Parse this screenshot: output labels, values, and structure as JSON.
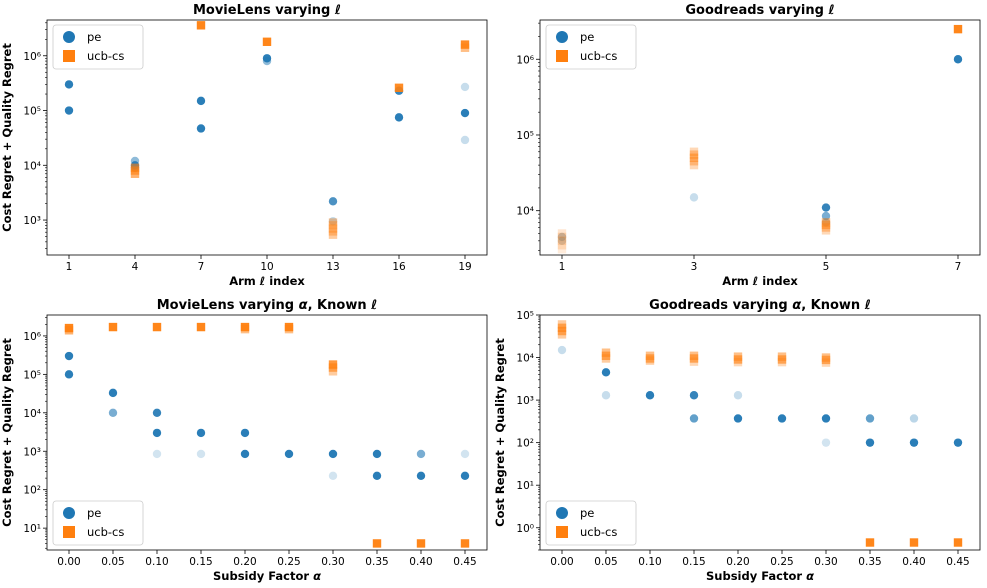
{
  "colors": {
    "pe": "#1f77b4",
    "ucb_cs": "#ff7f0e"
  },
  "panels": [
    {
      "title_text": "MovieLens varying ",
      "title_sym": "ℓ",
      "xlabel_text": "Arm ",
      "xlabel_sym": "ℓ",
      "xlabel_tail": " index",
      "ylabel": "Cost Regret + Quality Regret",
      "legend_pos": "upper-left",
      "chart_data": {
        "type": "scatter",
        "xscale": "categorical",
        "yscale": "log",
        "xticks": [
          "1",
          "4",
          "7",
          "10",
          "13",
          "16",
          "19"
        ],
        "ylim": [
          230,
          4500000
        ],
        "ytick_exponents": [
          3,
          4,
          5,
          6
        ],
        "series": [
          {
            "name": "pe",
            "marker": "circle",
            "points": [
              {
                "x": "1",
                "y": 300000,
                "a": 0.95
              },
              {
                "x": "1",
                "y": 100000,
                "a": 0.95
              },
              {
                "x": "4",
                "y": 12000,
                "a": 0.5
              },
              {
                "x": "4",
                "y": 10000,
                "a": 0.9
              },
              {
                "x": "4",
                "y": 9000,
                "a": 0.7
              },
              {
                "x": "7",
                "y": 150000,
                "a": 0.95
              },
              {
                "x": "7",
                "y": 47000,
                "a": 0.95
              },
              {
                "x": "10",
                "y": 900000,
                "a": 0.95
              },
              {
                "x": "10",
                "y": 800000,
                "a": 0.5
              },
              {
                "x": "13",
                "y": 2200,
                "a": 0.8
              },
              {
                "x": "13",
                "y": 950,
                "a": 0.3
              },
              {
                "x": "16",
                "y": 230000,
                "a": 0.9
              },
              {
                "x": "16",
                "y": 75000,
                "a": 0.95
              },
              {
                "x": "19",
                "y": 270000,
                "a": 0.25
              },
              {
                "x": "19",
                "y": 90000,
                "a": 0.95
              },
              {
                "x": "19",
                "y": 29000,
                "a": 0.25
              }
            ]
          },
          {
            "name": "ucb-cs",
            "marker": "square",
            "points": [
              {
                "x": "4",
                "y": 9000,
                "a": 0.6
              },
              {
                "x": "4",
                "y": 8000,
                "a": 0.6
              },
              {
                "x": "4",
                "y": 7000,
                "a": 0.6
              },
              {
                "x": "7",
                "y": 3600000,
                "a": 0.95
              },
              {
                "x": "10",
                "y": 1800000,
                "a": 0.95
              },
              {
                "x": "13",
                "y": 900,
                "a": 0.4
              },
              {
                "x": "13",
                "y": 800,
                "a": 0.4
              },
              {
                "x": "13",
                "y": 700,
                "a": 0.4
              },
              {
                "x": "13",
                "y": 620,
                "a": 0.4
              },
              {
                "x": "13",
                "y": 540,
                "a": 0.4
              },
              {
                "x": "16",
                "y": 260000,
                "a": 0.9
              },
              {
                "x": "19",
                "y": 1600000,
                "a": 0.9
              },
              {
                "x": "19",
                "y": 1400000,
                "a": 0.5
              }
            ]
          }
        ]
      }
    },
    {
      "title_text": "Goodreads varying ",
      "title_sym": "ℓ",
      "xlabel_text": "Arm ",
      "xlabel_sym": "ℓ",
      "xlabel_tail": " index",
      "ylabel": "",
      "legend_pos": "upper-left",
      "chart_data": {
        "type": "scatter",
        "xscale": "categorical",
        "yscale": "log",
        "xticks": [
          "1",
          "3",
          "5",
          "7"
        ],
        "ylim": [
          2600,
          3300000
        ],
        "ytick_exponents": [
          4,
          5,
          6
        ],
        "series": [
          {
            "name": "pe",
            "marker": "circle",
            "points": [
              {
                "x": "1",
                "y": 4500,
                "a": 0.4
              },
              {
                "x": "1",
                "y": 4000,
                "a": 0.3
              },
              {
                "x": "3",
                "y": 15000,
                "a": 0.25
              },
              {
                "x": "5",
                "y": 11000,
                "a": 0.9
              },
              {
                "x": "5",
                "y": 8500,
                "a": 0.6
              },
              {
                "x": "5",
                "y": 7000,
                "a": 0.4
              },
              {
                "x": "7",
                "y": 1000000,
                "a": 0.95
              }
            ]
          },
          {
            "name": "ucb-cs",
            "marker": "square",
            "points": [
              {
                "x": "1",
                "y": 5000,
                "a": 0.2
              },
              {
                "x": "1",
                "y": 4500,
                "a": 0.25
              },
              {
                "x": "1",
                "y": 4000,
                "a": 0.3
              },
              {
                "x": "1",
                "y": 3500,
                "a": 0.2
              },
              {
                "x": "1",
                "y": 3100,
                "a": 0.15
              },
              {
                "x": "3",
                "y": 60000,
                "a": 0.3
              },
              {
                "x": "3",
                "y": 55000,
                "a": 0.4
              },
              {
                "x": "3",
                "y": 50000,
                "a": 0.5
              },
              {
                "x": "3",
                "y": 45000,
                "a": 0.4
              },
              {
                "x": "3",
                "y": 40000,
                "a": 0.3
              },
              {
                "x": "5",
                "y": 7000,
                "a": 0.5
              },
              {
                "x": "5",
                "y": 6500,
                "a": 0.5
              },
              {
                "x": "5",
                "y": 6000,
                "a": 0.4
              },
              {
                "x": "5",
                "y": 5500,
                "a": 0.3
              },
              {
                "x": "7",
                "y": 2500000,
                "a": 0.95
              }
            ]
          }
        ]
      }
    },
    {
      "title_text": "MovieLens varying ",
      "title_sym": "α",
      "title_tail": ", Known ",
      "title_sym2": "ℓ",
      "xlabel_text": "Subsidy Factor ",
      "xlabel_sym": "α",
      "xlabel_tail": "",
      "ylabel": "Cost Regret + Quality Regret",
      "legend_pos": "lower-left",
      "chart_data": {
        "type": "scatter",
        "xscale": "categorical",
        "yscale": "log",
        "xticks": [
          "0.00",
          "0.05",
          "0.10",
          "0.15",
          "0.20",
          "0.25",
          "0.30",
          "0.35",
          "0.40",
          "0.45"
        ],
        "ylim": [
          2.7,
          3500000
        ],
        "ytick_exponents": [
          1,
          2,
          3,
          4,
          5,
          6
        ],
        "series": [
          {
            "name": "pe",
            "marker": "circle",
            "points": [
              {
                "x": "0.00",
                "y": 300000,
                "a": 0.95
              },
              {
                "x": "0.00",
                "y": 100000,
                "a": 0.95
              },
              {
                "x": "0.05",
                "y": 33000,
                "a": 0.95
              },
              {
                "x": "0.05",
                "y": 10000,
                "a": 0.6
              },
              {
                "x": "0.10",
                "y": 10000,
                "a": 0.9
              },
              {
                "x": "0.10",
                "y": 3000,
                "a": 0.95
              },
              {
                "x": "0.10",
                "y": 850,
                "a": 0.2
              },
              {
                "x": "0.15",
                "y": 3000,
                "a": 0.95
              },
              {
                "x": "0.15",
                "y": 850,
                "a": 0.2
              },
              {
                "x": "0.20",
                "y": 3000,
                "a": 0.95
              },
              {
                "x": "0.20",
                "y": 850,
                "a": 0.95
              },
              {
                "x": "0.25",
                "y": 850,
                "a": 0.95
              },
              {
                "x": "0.30",
                "y": 850,
                "a": 0.95
              },
              {
                "x": "0.30",
                "y": 230,
                "a": 0.2
              },
              {
                "x": "0.35",
                "y": 850,
                "a": 0.95
              },
              {
                "x": "0.35",
                "y": 230,
                "a": 0.95
              },
              {
                "x": "0.40",
                "y": 850,
                "a": 0.6
              },
              {
                "x": "0.40",
                "y": 230,
                "a": 0.95
              },
              {
                "x": "0.45",
                "y": 850,
                "a": 0.2
              },
              {
                "x": "0.45",
                "y": 230,
                "a": 0.95
              }
            ]
          },
          {
            "name": "ucb-cs",
            "marker": "square",
            "points": [
              {
                "x": "0.00",
                "y": 1600000,
                "a": 0.95
              },
              {
                "x": "0.00",
                "y": 1400000,
                "a": 0.6
              },
              {
                "x": "0.05",
                "y": 1700000,
                "a": 0.95
              },
              {
                "x": "0.10",
                "y": 1700000,
                "a": 0.95
              },
              {
                "x": "0.15",
                "y": 1700000,
                "a": 0.95
              },
              {
                "x": "0.20",
                "y": 1700000,
                "a": 0.95
              },
              {
                "x": "0.20",
                "y": 1500000,
                "a": 0.5
              },
              {
                "x": "0.25",
                "y": 1700000,
                "a": 0.95
              },
              {
                "x": "0.25",
                "y": 1500000,
                "a": 0.5
              },
              {
                "x": "0.30",
                "y": 180000,
                "a": 0.8
              },
              {
                "x": "0.30",
                "y": 150000,
                "a": 0.6
              },
              {
                "x": "0.30",
                "y": 120000,
                "a": 0.4
              },
              {
                "x": "0.35",
                "y": 4,
                "a": 0.95
              },
              {
                "x": "0.40",
                "y": 4,
                "a": 0.95
              },
              {
                "x": "0.45",
                "y": 4,
                "a": 0.95
              }
            ]
          }
        ]
      }
    },
    {
      "title_text": "Goodreads varying ",
      "title_sym": "α",
      "title_tail": ", Known ",
      "title_sym2": "ℓ",
      "xlabel_text": "Subsidy Factor ",
      "xlabel_sym": "α",
      "xlabel_tail": "",
      "ylabel": "Cost Regret + Quality Regret",
      "legend_pos": "lower-left",
      "chart_data": {
        "type": "scatter",
        "xscale": "categorical",
        "yscale": "log",
        "xticks": [
          "0.00",
          "0.05",
          "0.10",
          "0.15",
          "0.20",
          "0.25",
          "0.30",
          "0.35",
          "0.40",
          "0.45"
        ],
        "ylim": [
          0.3,
          100000
        ],
        "ytick_exponents": [
          0,
          1,
          2,
          3,
          4,
          5
        ],
        "series": [
          {
            "name": "pe",
            "marker": "circle",
            "points": [
              {
                "x": "0.00",
                "y": 15000,
                "a": 0.25
              },
              {
                "x": "0.05",
                "y": 4500,
                "a": 0.95
              },
              {
                "x": "0.05",
                "y": 1300,
                "a": 0.25
              },
              {
                "x": "0.10",
                "y": 1300,
                "a": 0.95
              },
              {
                "x": "0.15",
                "y": 1300,
                "a": 0.9
              },
              {
                "x": "0.15",
                "y": 370,
                "a": 0.7
              },
              {
                "x": "0.20",
                "y": 1300,
                "a": 0.25
              },
              {
                "x": "0.20",
                "y": 370,
                "a": 0.95
              },
              {
                "x": "0.25",
                "y": 370,
                "a": 0.95
              },
              {
                "x": "0.30",
                "y": 370,
                "a": 0.95
              },
              {
                "x": "0.30",
                "y": 100,
                "a": 0.2
              },
              {
                "x": "0.35",
                "y": 370,
                "a": 0.7
              },
              {
                "x": "0.35",
                "y": 100,
                "a": 0.95
              },
              {
                "x": "0.40",
                "y": 370,
                "a": 0.3
              },
              {
                "x": "0.40",
                "y": 100,
                "a": 0.95
              },
              {
                "x": "0.45",
                "y": 100,
                "a": 0.95
              }
            ]
          },
          {
            "name": "ucb-cs",
            "marker": "square",
            "points": [
              {
                "x": "0.00",
                "y": 60000,
                "a": 0.4
              },
              {
                "x": "0.00",
                "y": 50000,
                "a": 0.6
              },
              {
                "x": "0.00",
                "y": 42000,
                "a": 0.6
              },
              {
                "x": "0.00",
                "y": 35000,
                "a": 0.4
              },
              {
                "x": "0.05",
                "y": 13000,
                "a": 0.5
              },
              {
                "x": "0.05",
                "y": 11000,
                "a": 0.6
              },
              {
                "x": "0.05",
                "y": 9500,
                "a": 0.4
              },
              {
                "x": "0.10",
                "y": 11000,
                "a": 0.5
              },
              {
                "x": "0.10",
                "y": 9500,
                "a": 0.6
              },
              {
                "x": "0.10",
                "y": 8500,
                "a": 0.4
              },
              {
                "x": "0.15",
                "y": 11000,
                "a": 0.5
              },
              {
                "x": "0.15",
                "y": 9500,
                "a": 0.6
              },
              {
                "x": "0.15",
                "y": 8000,
                "a": 0.3
              },
              {
                "x": "0.20",
                "y": 10500,
                "a": 0.5
              },
              {
                "x": "0.20",
                "y": 9000,
                "a": 0.6
              },
              {
                "x": "0.20",
                "y": 7800,
                "a": 0.3
              },
              {
                "x": "0.25",
                "y": 10500,
                "a": 0.5
              },
              {
                "x": "0.25",
                "y": 9000,
                "a": 0.6
              },
              {
                "x": "0.25",
                "y": 7800,
                "a": 0.3
              },
              {
                "x": "0.30",
                "y": 10000,
                "a": 0.5
              },
              {
                "x": "0.30",
                "y": 8800,
                "a": 0.6
              },
              {
                "x": "0.30",
                "y": 7600,
                "a": 0.3
              },
              {
                "x": "0.35",
                "y": 0.45,
                "a": 0.95
              },
              {
                "x": "0.40",
                "y": 0.45,
                "a": 0.95
              },
              {
                "x": "0.45",
                "y": 0.45,
                "a": 0.95
              }
            ]
          }
        ]
      }
    }
  ]
}
